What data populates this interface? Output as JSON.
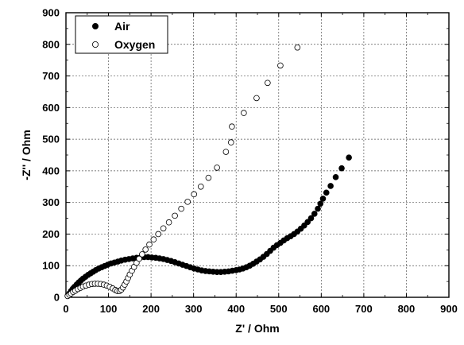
{
  "chart_data": {
    "type": "scatter",
    "xlabel": "Z' / Ohm",
    "ylabel": "-Z'' / Ohm",
    "xlim": [
      0,
      900
    ],
    "ylim": [
      0,
      900
    ],
    "xticks": [
      "0",
      "100",
      "200",
      "300",
      "400",
      "500",
      "600",
      "700",
      "800",
      "900"
    ],
    "yticks": [
      "0",
      "100",
      "200",
      "300",
      "400",
      "500",
      "600",
      "700",
      "800",
      "900"
    ],
    "grid": "dashed",
    "legend_position": "top-left",
    "series": [
      {
        "name": "Air",
        "marker": "filled-circle",
        "color": "#000000",
        "x": [
          4,
          8,
          12,
          16,
          20,
          25,
          30,
          35,
          40,
          46,
          52,
          58,
          64,
          70,
          77,
          84,
          91,
          98,
          106,
          114,
          122,
          130,
          139,
          148,
          157,
          166,
          175,
          184,
          193,
          202,
          211,
          220,
          229,
          238,
          247,
          256,
          265,
          274,
          283,
          292,
          301,
          310,
          319,
          328,
          337,
          346,
          355,
          364,
          373,
          382,
          391,
          400,
          408,
          416,
          424,
          432,
          440,
          448,
          456,
          464,
          472,
          480,
          488,
          496,
          504,
          512,
          520,
          528,
          536,
          544,
          552,
          560,
          568,
          576,
          584,
          592,
          598,
          604,
          612,
          622,
          634,
          648,
          665
        ],
        "y": [
          5,
          12,
          20,
          27,
          33,
          40,
          47,
          53,
          59,
          65,
          71,
          76,
          81,
          86,
          91,
          95,
          99,
          103,
          107,
          110,
          113,
          116,
          119,
          121,
          123,
          125,
          126,
          127,
          127,
          126,
          125,
          123,
          121,
          118,
          115,
          111,
          107,
          103,
          99,
          95,
          91,
          88,
          85,
          83,
          82,
          81,
          80,
          80,
          81,
          82,
          84,
          86,
          88,
          91,
          95,
          100,
          106,
          113,
          120,
          128,
          137,
          147,
          157,
          165,
          172,
          180,
          187,
          193,
          200,
          208,
          217,
          227,
          238,
          250,
          264,
          280,
          296,
          312,
          331,
          352,
          380,
          408,
          442
        ]
      },
      {
        "name": "Oxygen",
        "marker": "open-circle",
        "color": "#000000",
        "x": [
          4,
          8,
          12,
          17,
          22,
          28,
          34,
          40,
          47,
          54,
          61,
          68,
          75,
          82,
          89,
          96,
          103,
          110,
          116,
          121,
          126,
          130,
          134,
          138,
          142,
          146,
          150,
          155,
          160,
          166,
          172,
          179,
          187,
          196,
          206,
          217,
          229,
          242,
          256,
          271,
          286,
          301,
          317,
          335,
          355,
          376,
          388,
          390,
          418,
          448,
          474,
          504,
          544
        ],
        "y": [
          4,
          8,
          12,
          17,
          21,
          26,
          30,
          34,
          37,
          40,
          42,
          43,
          43,
          42,
          40,
          37,
          33,
          28,
          23,
          20,
          20,
          24,
          31,
          40,
          50,
          61,
          72,
          84,
          96,
          109,
          122,
          136,
          151,
          167,
          183,
          200,
          218,
          237,
          258,
          280,
          302,
          326,
          350,
          378,
          410,
          460,
          490,
          540,
          583,
          630,
          678,
          733,
          790
        ]
      }
    ]
  }
}
